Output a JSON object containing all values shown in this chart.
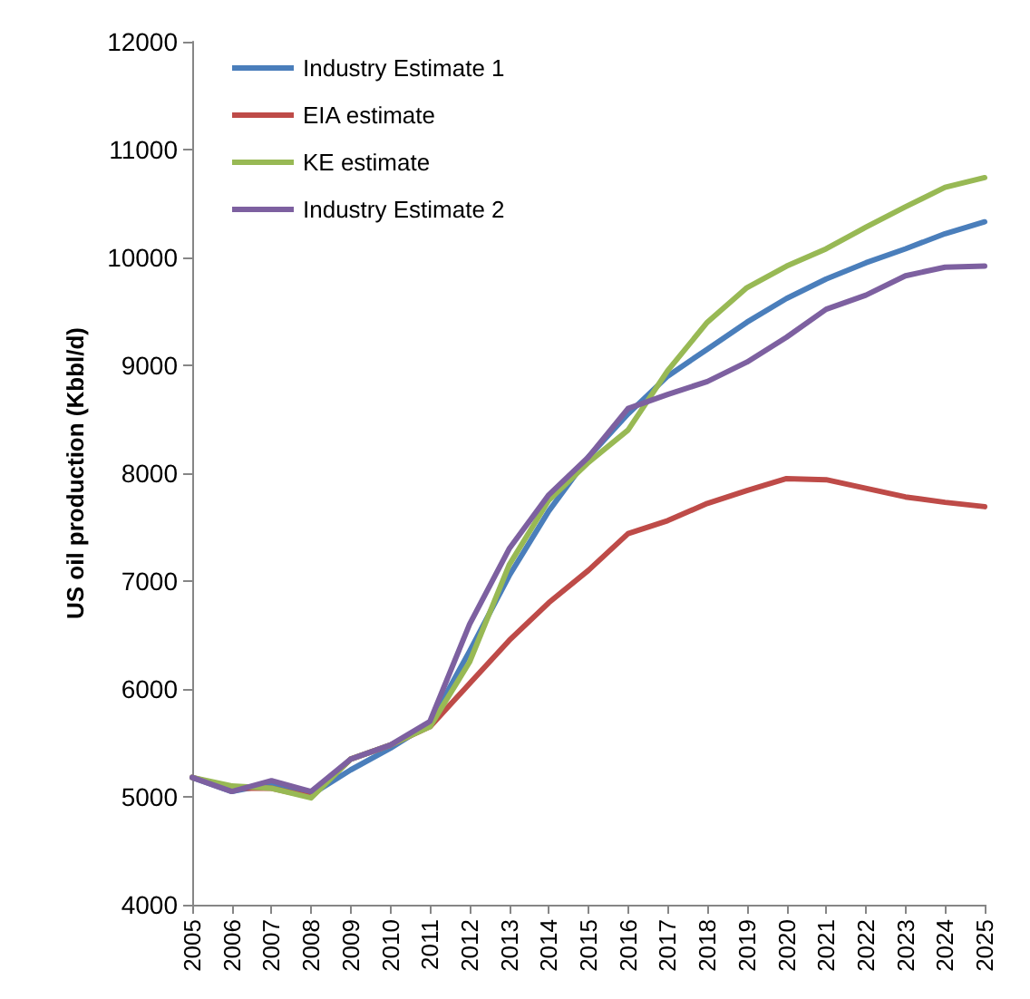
{
  "chart_data": {
    "type": "line",
    "ylabel": "US oil production (Kbbl/d)",
    "categories": [
      "2005",
      "2006",
      "2007",
      "2008",
      "2009",
      "2010",
      "2011",
      "2012",
      "2013",
      "2014",
      "2015",
      "2016",
      "2017",
      "2018",
      "2019",
      "2020",
      "2021",
      "2022",
      "2023",
      "2024",
      "2025"
    ],
    "series": [
      {
        "name": "Industry Estimate 1",
        "color": "#4a7ebb",
        "values": [
          5180,
          5050,
          5120,
          5020,
          5250,
          5450,
          5680,
          6350,
          7050,
          7650,
          8150,
          8550,
          8900,
          9150,
          9400,
          9620,
          9800,
          9950,
          10080,
          10220,
          10330
        ]
      },
      {
        "name": "EIA estimate",
        "color": "#be4b48",
        "values": [
          5180,
          5080,
          5080,
          5000,
          5350,
          5480,
          5650,
          6050,
          6450,
          6800,
          7100,
          7440,
          7560,
          7720,
          7840,
          7950,
          7940,
          7860,
          7780,
          7730,
          7690
        ]
      },
      {
        "name": "KE estimate",
        "color": "#98b954",
        "values": [
          5180,
          5100,
          5080,
          4990,
          5350,
          5480,
          5650,
          6250,
          7150,
          7750,
          8100,
          8400,
          8950,
          9400,
          9720,
          9920,
          10080,
          10280,
          10470,
          10650,
          10740
        ]
      },
      {
        "name": "Industry Estimate 2",
        "color": "#7d60a0",
        "values": [
          5180,
          5050,
          5150,
          5050,
          5350,
          5480,
          5700,
          6600,
          7300,
          7800,
          8150,
          8600,
          8730,
          8850,
          9030,
          9260,
          9520,
          9650,
          9830,
          9910,
          9920
        ]
      }
    ],
    "ylim": [
      4000,
      12000
    ],
    "yticks": [
      4000,
      5000,
      6000,
      7000,
      8000,
      9000,
      10000,
      11000,
      12000
    ],
    "grid": false,
    "legend": "top left",
    "marker": "none",
    "line_style": "solid"
  }
}
